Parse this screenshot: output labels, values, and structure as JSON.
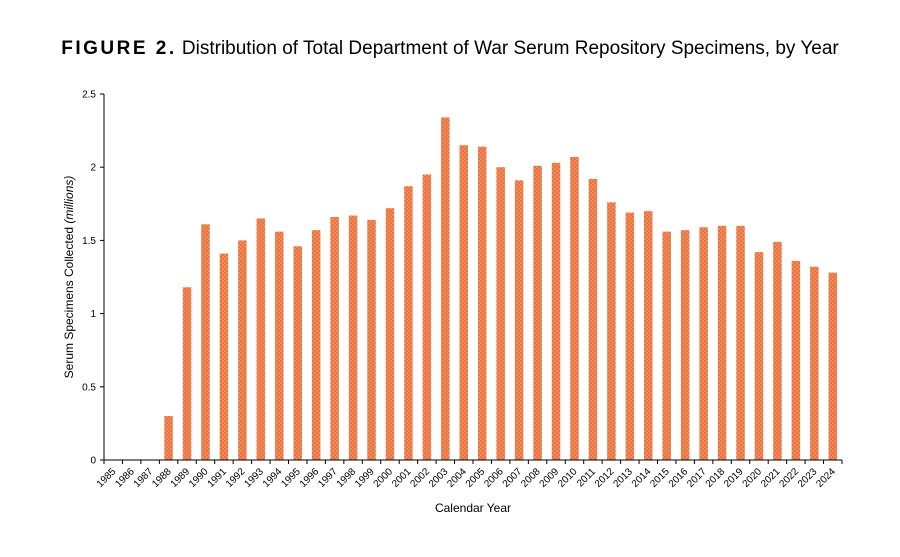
{
  "figure": {
    "label": "FIGURE 2.",
    "title": "Distribution of Total Department of War Serum Repository Specimens, by Year"
  },
  "chart_data": {
    "type": "bar",
    "xlabel": "Calendar Year",
    "ylabel_main": "Serum Specimens Collected ",
    "ylabel_unit": "(millions)",
    "ylim": [
      0,
      2.5
    ],
    "yticks": [
      0,
      0.5,
      1,
      1.5,
      2,
      2.5
    ],
    "ytick_labels": [
      "0",
      "0.5",
      "1",
      "1.5",
      "2",
      "2.5"
    ],
    "grid": false,
    "legend": "none",
    "bar_color": "#f08c55",
    "bar_pattern_color": "#e0603a",
    "categories": [
      "1985",
      "1986",
      "1987",
      "1988",
      "1989",
      "1990",
      "1991",
      "1992",
      "1993",
      "1994",
      "1995",
      "1996",
      "1997",
      "1998",
      "1999",
      "2000",
      "2001",
      "2002",
      "2003",
      "2004",
      "2005",
      "2006",
      "2007",
      "2008",
      "2009",
      "2010",
      "2011",
      "2012",
      "2013",
      "2014",
      "2015",
      "2016",
      "2017",
      "2018",
      "2019",
      "2020",
      "2021",
      "2022",
      "2023",
      "2024"
    ],
    "values": [
      0,
      0,
      0,
      0.3,
      1.18,
      1.61,
      1.41,
      1.5,
      1.65,
      1.56,
      1.46,
      1.57,
      1.66,
      1.67,
      1.64,
      1.72,
      1.87,
      1.95,
      2.34,
      2.15,
      2.14,
      2.0,
      1.91,
      2.01,
      2.03,
      2.07,
      1.92,
      1.76,
      1.69,
      1.7,
      1.56,
      1.57,
      1.59,
      1.6,
      1.6,
      1.42,
      1.49,
      1.36,
      1.32,
      1.28
    ]
  }
}
